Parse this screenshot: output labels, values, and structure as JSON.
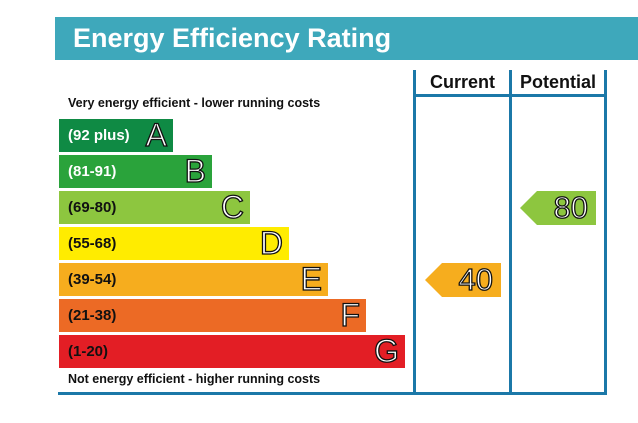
{
  "header": {
    "title": "Energy Efficiency Rating"
  },
  "chart_data": {
    "type": "table",
    "title": "Energy Efficiency Rating",
    "columns": [
      "Current",
      "Potential"
    ],
    "top_note": "Very energy efficient - lower running costs",
    "bottom_note": "Not energy efficient - higher running costs",
    "bands": [
      {
        "range": "(92 plus)",
        "letter": "A",
        "color": "#0f8a44",
        "text_color": "#ffffff"
      },
      {
        "range": "(81-91)",
        "letter": "B",
        "color": "#2aa33b",
        "text_color": "#ffffff"
      },
      {
        "range": "(69-80)",
        "letter": "C",
        "color": "#8dc63f",
        "text_color": "#111111"
      },
      {
        "range": "(55-68)",
        "letter": "D",
        "color": "#ffec00",
        "text_color": "#111111"
      },
      {
        "range": "(39-54)",
        "letter": "E",
        "color": "#f6ad1e",
        "text_color": "#111111"
      },
      {
        "range": "(21-38)",
        "letter": "F",
        "color": "#ec6a25",
        "text_color": "#111111"
      },
      {
        "range": "(1-20)",
        "letter": "G",
        "color": "#e31e25",
        "text_color": "#111111"
      }
    ],
    "current": {
      "value": 40,
      "band": "E",
      "color": "#f6ad1e"
    },
    "potential": {
      "value": 80,
      "band": "C",
      "color": "#8dc63f"
    }
  }
}
